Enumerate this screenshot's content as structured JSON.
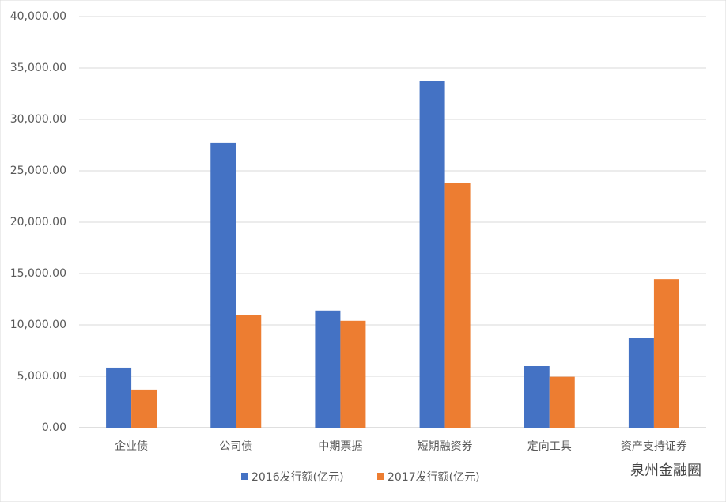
{
  "chart_data": {
    "type": "bar",
    "categories": [
      "企业债",
      "公司债",
      "中期票据",
      "短期融资券",
      "定向工具",
      "资产支持证券"
    ],
    "series": [
      {
        "name": "2016发行额(亿元)",
        "color": "#4472c4",
        "values": [
          5850,
          27700,
          11400,
          33700,
          6000,
          8700
        ]
      },
      {
        "name": "2017发行额(亿元)",
        "color": "#ed7d31",
        "values": [
          3700,
          11000,
          10400,
          23800,
          4950,
          14450
        ]
      }
    ],
    "ylim": [
      0,
      40000
    ],
    "yticks": [
      {
        "value": 0,
        "label": "0.00"
      },
      {
        "value": 5000,
        "label": "5,000.00"
      },
      {
        "value": 10000,
        "label": "10,000.00"
      },
      {
        "value": 15000,
        "label": "15,000.00"
      },
      {
        "value": 20000,
        "label": "20,000.00"
      },
      {
        "value": 25000,
        "label": "25,000.00"
      },
      {
        "value": 30000,
        "label": "30,000.00"
      },
      {
        "value": 35000,
        "label": "35,000.00"
      },
      {
        "value": 40000,
        "label": "40,000.00"
      }
    ],
    "grid": true,
    "legend": "bottom",
    "watermark": "泉州金融圈"
  }
}
